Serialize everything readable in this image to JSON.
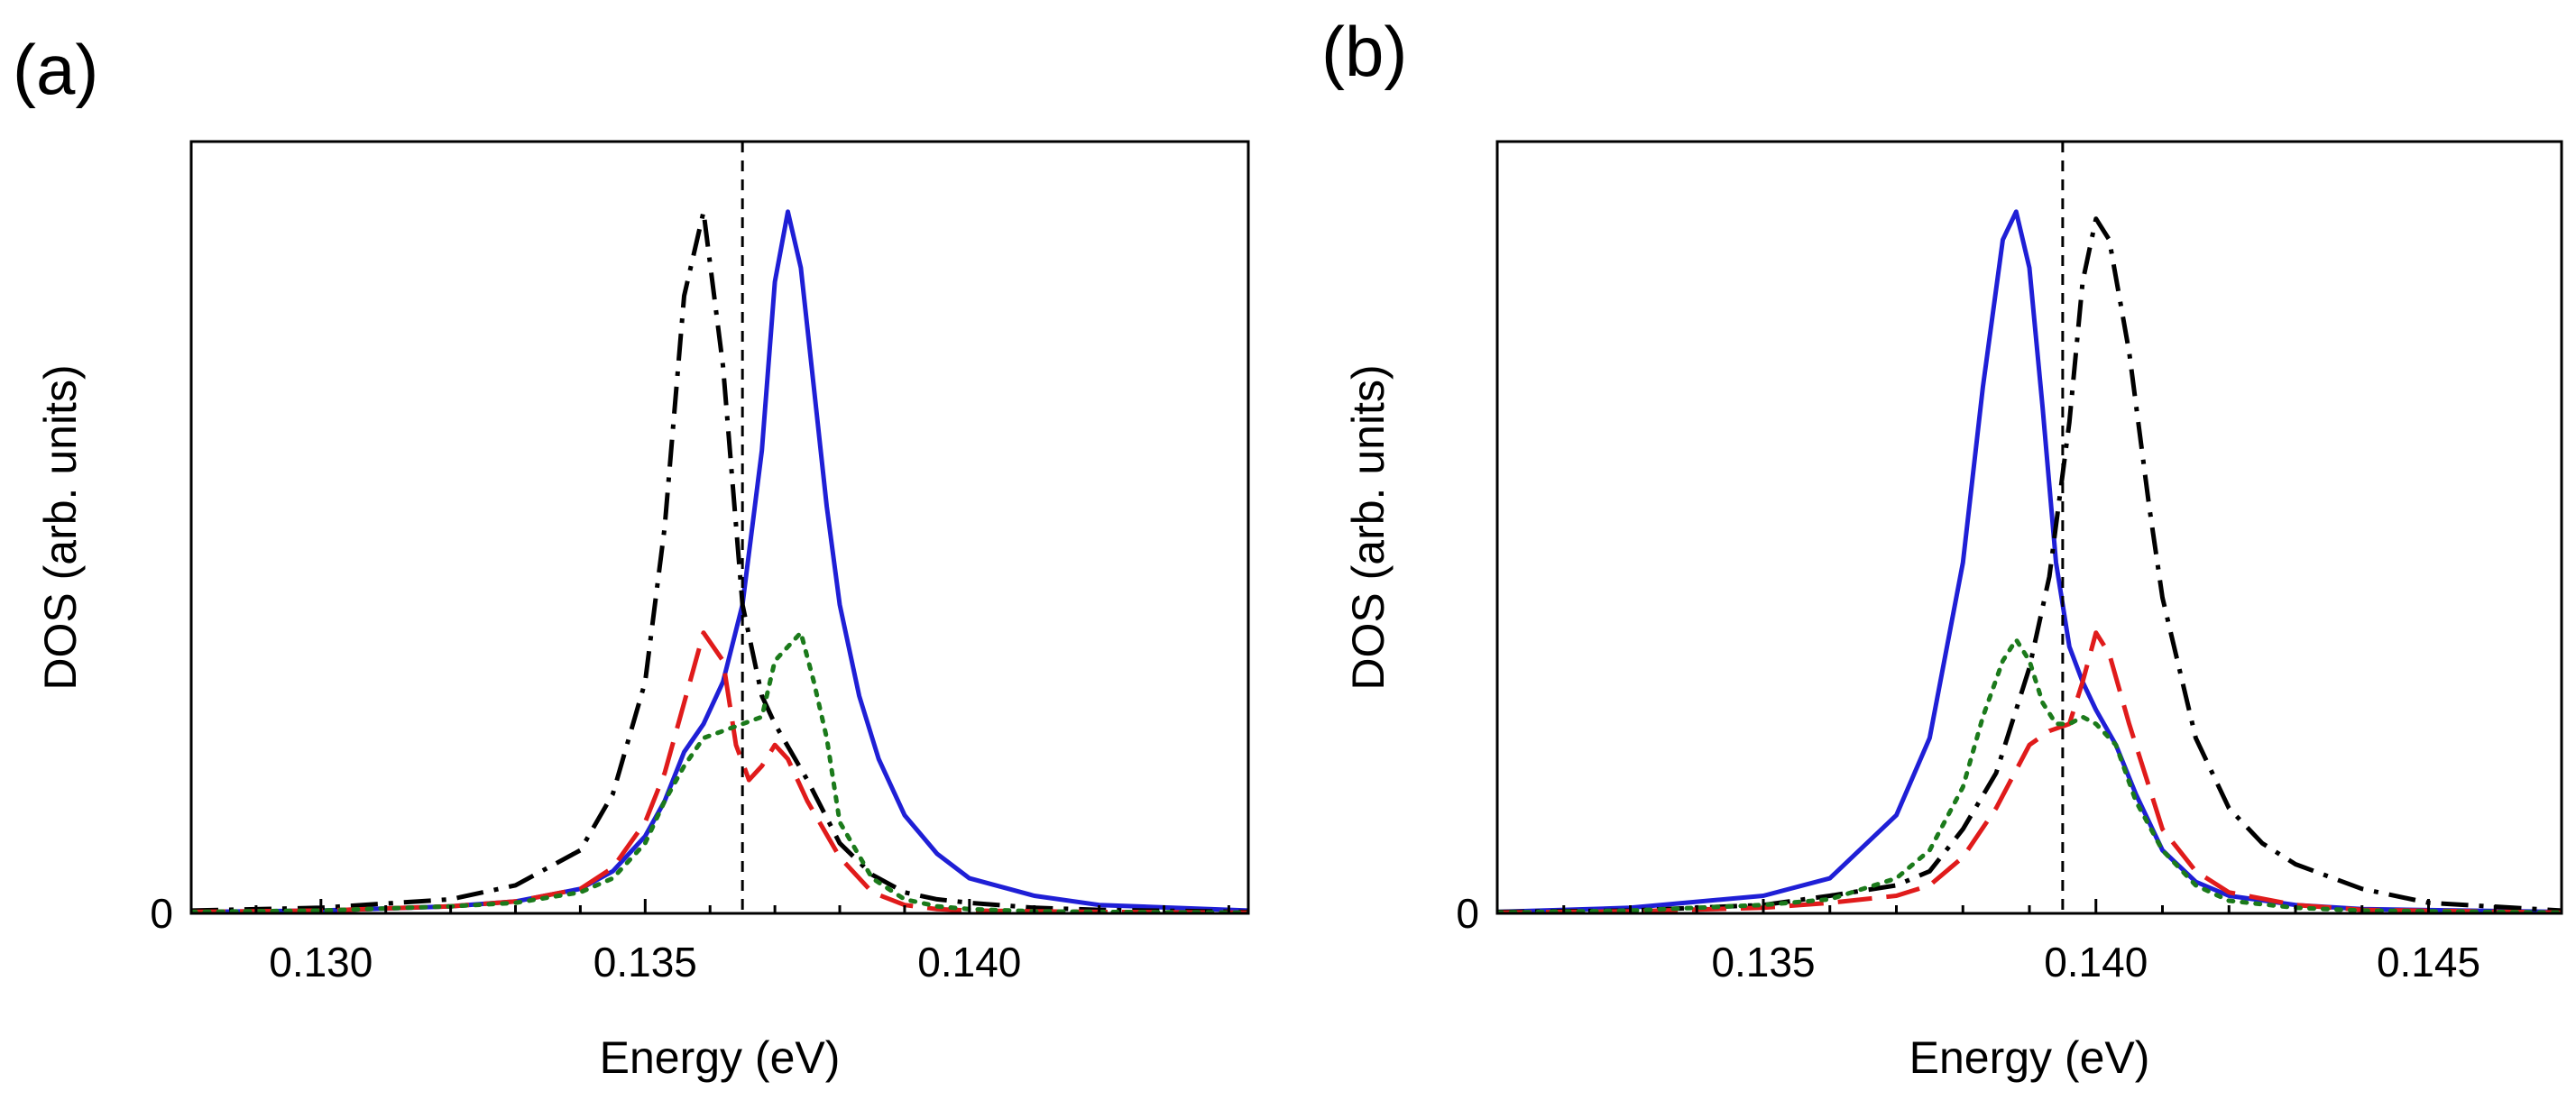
{
  "chart_data": [
    {
      "type": "line",
      "panel_label": "(a)",
      "xlabel": "Energy (eV)",
      "ylabel": "DOS (arb. units)",
      "xlim": [
        0.128,
        0.1443
      ],
      "ylim": [
        0,
        1.1
      ],
      "xticks": [
        0.13,
        0.135,
        0.14
      ],
      "xtick_labels": [
        "0.130",
        "0.135",
        "0.140"
      ],
      "ytick_labels": [
        "0"
      ],
      "vline_x": 0.1365,
      "series": [
        {
          "name": "blue-solid",
          "color": "#1f1fd6",
          "dash": "solid",
          "x": [
            0.128,
            0.13,
            0.132,
            0.133,
            0.134,
            0.1345,
            0.135,
            0.1353,
            0.1356,
            0.1359,
            0.1362,
            0.1365,
            0.1368,
            0.137,
            0.1372,
            0.1374,
            0.1376,
            0.1378,
            0.138,
            0.1383,
            0.1386,
            0.139,
            0.1395,
            0.14,
            0.141,
            0.142,
            0.1443
          ],
          "y": [
            0.002,
            0.004,
            0.01,
            0.017,
            0.035,
            0.06,
            0.11,
            0.16,
            0.23,
            0.27,
            0.33,
            0.44,
            0.66,
            0.9,
            1.0,
            0.92,
            0.75,
            0.58,
            0.44,
            0.31,
            0.22,
            0.14,
            0.085,
            0.05,
            0.025,
            0.012,
            0.004
          ]
        },
        {
          "name": "black-dashdot",
          "color": "#000000",
          "dash": "dashdot",
          "x": [
            0.128,
            0.13,
            0.132,
            0.133,
            0.134,
            0.1345,
            0.135,
            0.1353,
            0.1356,
            0.1359,
            0.1362,
            0.1365,
            0.1368,
            0.137,
            0.1375,
            0.138,
            0.1385,
            0.139,
            0.1395,
            0.14,
            0.141,
            0.142,
            0.1443
          ],
          "y": [
            0.004,
            0.008,
            0.02,
            0.04,
            0.09,
            0.17,
            0.33,
            0.55,
            0.88,
            1.0,
            0.78,
            0.44,
            0.31,
            0.27,
            0.19,
            0.1,
            0.055,
            0.03,
            0.02,
            0.015,
            0.008,
            0.005,
            0.002
          ]
        },
        {
          "name": "red-dashed",
          "color": "#e01b1b",
          "dash": "dashed",
          "x": [
            0.128,
            0.13,
            0.132,
            0.133,
            0.134,
            0.1345,
            0.135,
            0.1353,
            0.1356,
            0.1359,
            0.1362,
            0.1364,
            0.1366,
            0.1368,
            0.137,
            0.1372,
            0.1375,
            0.138,
            0.1385,
            0.139,
            0.1395,
            0.14,
            0.141,
            0.142,
            0.1443
          ],
          "y": [
            0.002,
            0.004,
            0.01,
            0.017,
            0.035,
            0.065,
            0.13,
            0.2,
            0.3,
            0.4,
            0.36,
            0.24,
            0.19,
            0.21,
            0.24,
            0.22,
            0.16,
            0.08,
            0.03,
            0.012,
            0.006,
            0.004,
            0.003,
            0.002,
            0.001
          ]
        },
        {
          "name": "green-dotted",
          "color": "#1b7a1b",
          "dash": "dotted",
          "x": [
            0.128,
            0.13,
            0.132,
            0.133,
            0.134,
            0.1345,
            0.135,
            0.1353,
            0.1356,
            0.1359,
            0.1362,
            0.1365,
            0.1368,
            0.137,
            0.1372,
            0.1374,
            0.1376,
            0.1378,
            0.138,
            0.1385,
            0.139,
            0.1395,
            0.14,
            0.141,
            0.142,
            0.1443
          ],
          "y": [
            0.002,
            0.004,
            0.01,
            0.015,
            0.03,
            0.05,
            0.1,
            0.16,
            0.21,
            0.25,
            0.26,
            0.27,
            0.28,
            0.36,
            0.38,
            0.4,
            0.33,
            0.25,
            0.13,
            0.05,
            0.02,
            0.01,
            0.006,
            0.003,
            0.002,
            0.001
          ]
        }
      ]
    },
    {
      "type": "line",
      "panel_label": "(b)",
      "xlabel": "Energy (eV)",
      "ylabel": "DOS (arb. units)",
      "xlim": [
        0.131,
        0.147
      ],
      "ylim": [
        0,
        1.1
      ],
      "xticks": [
        0.135,
        0.14,
        0.145
      ],
      "xtick_labels": [
        "0.135",
        "0.140",
        "0.145"
      ],
      "ytick_labels": [
        "0"
      ],
      "vline_x": 0.1395,
      "series": [
        {
          "name": "blue-solid",
          "color": "#1f1fd6",
          "dash": "solid",
          "x": [
            0.131,
            0.133,
            0.135,
            0.136,
            0.137,
            0.1375,
            0.138,
            0.1383,
            0.1386,
            0.1388,
            0.139,
            0.1392,
            0.1394,
            0.1396,
            0.1398,
            0.14,
            0.1403,
            0.1406,
            0.141,
            0.1415,
            0.142,
            0.143,
            0.144,
            0.147
          ],
          "y": [
            0.002,
            0.008,
            0.025,
            0.05,
            0.14,
            0.25,
            0.5,
            0.75,
            0.96,
            1.0,
            0.92,
            0.72,
            0.5,
            0.38,
            0.33,
            0.29,
            0.24,
            0.17,
            0.09,
            0.045,
            0.025,
            0.012,
            0.006,
            0.002
          ]
        },
        {
          "name": "black-dashdot",
          "color": "#000000",
          "dash": "dashdot",
          "x": [
            0.131,
            0.133,
            0.135,
            0.136,
            0.137,
            0.1375,
            0.138,
            0.1385,
            0.139,
            0.1393,
            0.1396,
            0.1398,
            0.14,
            0.1402,
            0.1405,
            0.1408,
            0.141,
            0.1415,
            0.142,
            0.1425,
            0.143,
            0.144,
            0.145,
            0.147
          ],
          "y": [
            0.002,
            0.004,
            0.012,
            0.025,
            0.04,
            0.06,
            0.12,
            0.2,
            0.35,
            0.48,
            0.7,
            0.9,
            0.99,
            0.96,
            0.8,
            0.58,
            0.45,
            0.25,
            0.15,
            0.1,
            0.07,
            0.035,
            0.015,
            0.004
          ]
        },
        {
          "name": "red-dashed",
          "color": "#e01b1b",
          "dash": "dashed",
          "x": [
            0.131,
            0.133,
            0.135,
            0.136,
            0.137,
            0.1375,
            0.138,
            0.1385,
            0.139,
            0.1393,
            0.1396,
            0.1398,
            0.14,
            0.1402,
            0.1405,
            0.1408,
            0.141,
            0.1415,
            0.142,
            0.143,
            0.144,
            0.147
          ],
          "y": [
            0.001,
            0.003,
            0.008,
            0.015,
            0.025,
            0.04,
            0.08,
            0.15,
            0.24,
            0.26,
            0.27,
            0.33,
            0.4,
            0.37,
            0.27,
            0.18,
            0.12,
            0.06,
            0.03,
            0.012,
            0.005,
            0.001
          ]
        },
        {
          "name": "green-dotted",
          "color": "#1b7a1b",
          "dash": "dotted",
          "x": [
            0.131,
            0.133,
            0.135,
            0.136,
            0.137,
            0.1375,
            0.138,
            0.1383,
            0.1386,
            0.1388,
            0.139,
            0.1392,
            0.1394,
            0.1396,
            0.1398,
            0.14,
            0.1403,
            0.1406,
            0.141,
            0.1415,
            0.142,
            0.143,
            0.144,
            0.147
          ],
          "y": [
            0.001,
            0.004,
            0.012,
            0.02,
            0.05,
            0.09,
            0.18,
            0.28,
            0.36,
            0.39,
            0.36,
            0.3,
            0.27,
            0.27,
            0.28,
            0.27,
            0.24,
            0.16,
            0.09,
            0.04,
            0.018,
            0.008,
            0.004,
            0.001
          ]
        }
      ]
    }
  ]
}
